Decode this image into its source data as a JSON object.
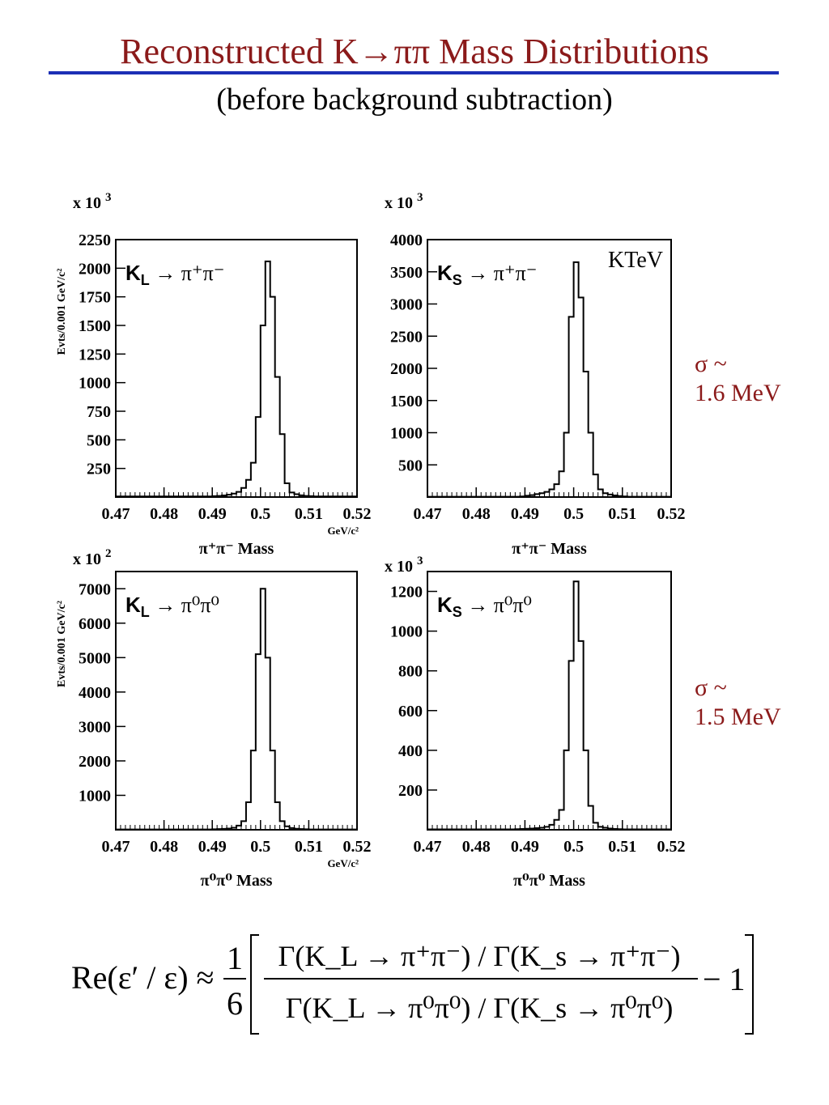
{
  "title": "Reconstructed K→ππ Mass Distributions",
  "subtitle": "(before background subtraction)",
  "sigma_notes": [
    {
      "symbol": "σ ~",
      "value": "1.6 MeV"
    },
    {
      "symbol": "σ ~",
      "value": "1.5 MeV"
    }
  ],
  "formula": {
    "lhs": "Re(ε′ / ε) ≈",
    "fraction_num": "1",
    "fraction_den": "6",
    "numerator": "Γ(K_L → π⁺π⁻) / Γ(K_s → π⁺π⁻)",
    "denominator": "Γ(K_L → π⁰π⁰) / Γ(K_s → π⁰π⁰)",
    "minus_one": "− 1"
  },
  "chart_data": [
    {
      "type": "histogram",
      "label": "K_L → π⁺π⁻",
      "multiplier": "x 10 3",
      "ylabel": "Evts/0.001 GeV/c²",
      "xlabel": "π⁺π⁻ Mass",
      "xunit": "GeV/c²",
      "xlim": [
        0.47,
        0.52
      ],
      "ylim": [
        0,
        2250
      ],
      "xticks": [
        "0.47",
        "0.48",
        "0.49",
        "0.5",
        "0.51",
        "0.52"
      ],
      "yticks": [
        250,
        500,
        750,
        1000,
        1250,
        1500,
        1750,
        2000,
        2250
      ],
      "bin_width": 0.001,
      "bin_edges_start": 0.47,
      "values": [
        5,
        5,
        5,
        5,
        5,
        5,
        5,
        5,
        5,
        5,
        5,
        5,
        5,
        5,
        5,
        5,
        5,
        5,
        5,
        5,
        8,
        10,
        14,
        20,
        30,
        45,
        80,
        150,
        300,
        700,
        1500,
        2060,
        1750,
        1050,
        550,
        120,
        40,
        25,
        15,
        10,
        8,
        5,
        5,
        5,
        5,
        5,
        5,
        5,
        5,
        5
      ]
    },
    {
      "type": "histogram",
      "label": "K_S → π⁺π⁻",
      "annotation": "KTeV",
      "multiplier": "x 10 3",
      "xlabel": "π⁺π⁻ Mass",
      "xlim": [
        0.47,
        0.52
      ],
      "ylim": [
        0,
        4000
      ],
      "xticks": [
        "0.47",
        "0.48",
        "0.49",
        "0.5",
        "0.51",
        "0.52"
      ],
      "yticks": [
        500,
        1000,
        1500,
        2000,
        2500,
        3000,
        3500,
        4000
      ],
      "bin_width": 0.001,
      "bin_edges_start": 0.47,
      "values": [
        5,
        5,
        5,
        5,
        5,
        5,
        5,
        5,
        5,
        5,
        5,
        5,
        5,
        5,
        5,
        5,
        5,
        5,
        5,
        10,
        20,
        30,
        45,
        60,
        80,
        120,
        200,
        400,
        1000,
        2800,
        3650,
        3100,
        1950,
        1000,
        350,
        120,
        60,
        40,
        25,
        15,
        10,
        5,
        5,
        5,
        5,
        5,
        5,
        5,
        5,
        5
      ]
    },
    {
      "type": "histogram",
      "label": "K_L → π⁰π⁰",
      "multiplier": "x 10 2",
      "ylabel": "Evts/0.001 GeV/c²",
      "xlabel": "π⁰π⁰ Mass",
      "xunit": "GeV/c²",
      "xlim": [
        0.47,
        0.52
      ],
      "ylim": [
        0,
        7500
      ],
      "xticks": [
        "0.47",
        "0.48",
        "0.49",
        "0.5",
        "0.51",
        "0.52"
      ],
      "yticks": [
        1000,
        2000,
        3000,
        4000,
        5000,
        6000,
        7000
      ],
      "bin_width": 0.001,
      "bin_edges_start": 0.47,
      "values": [
        10,
        10,
        10,
        10,
        10,
        10,
        10,
        10,
        10,
        10,
        10,
        10,
        10,
        10,
        10,
        10,
        10,
        10,
        10,
        10,
        15,
        20,
        25,
        35,
        60,
        120,
        250,
        800,
        2300,
        5100,
        7000,
        5000,
        2300,
        800,
        250,
        100,
        50,
        30,
        20,
        15,
        10,
        10,
        10,
        10,
        10,
        10,
        10,
        10,
        10,
        10
      ]
    },
    {
      "type": "histogram",
      "label": "K_S → π⁰π⁰",
      "multiplier": "x 10 3",
      "xlabel": "π⁰π⁰ Mass",
      "xlim": [
        0.47,
        0.52
      ],
      "ylim": [
        0,
        1300
      ],
      "xticks": [
        "0.47",
        "0.48",
        "0.49",
        "0.5",
        "0.51",
        "0.52"
      ],
      "yticks": [
        200,
        400,
        600,
        800,
        1000,
        1200
      ],
      "bin_width": 0.001,
      "bin_edges_start": 0.47,
      "values": [
        2,
        2,
        2,
        2,
        2,
        2,
        2,
        2,
        2,
        2,
        2,
        2,
        2,
        2,
        2,
        2,
        2,
        2,
        3,
        4,
        5,
        6,
        8,
        10,
        15,
        25,
        50,
        100,
        400,
        850,
        1250,
        950,
        400,
        120,
        35,
        15,
        10,
        6,
        4,
        3,
        2,
        2,
        2,
        2,
        2,
        2,
        2,
        2,
        2,
        2
      ]
    }
  ]
}
